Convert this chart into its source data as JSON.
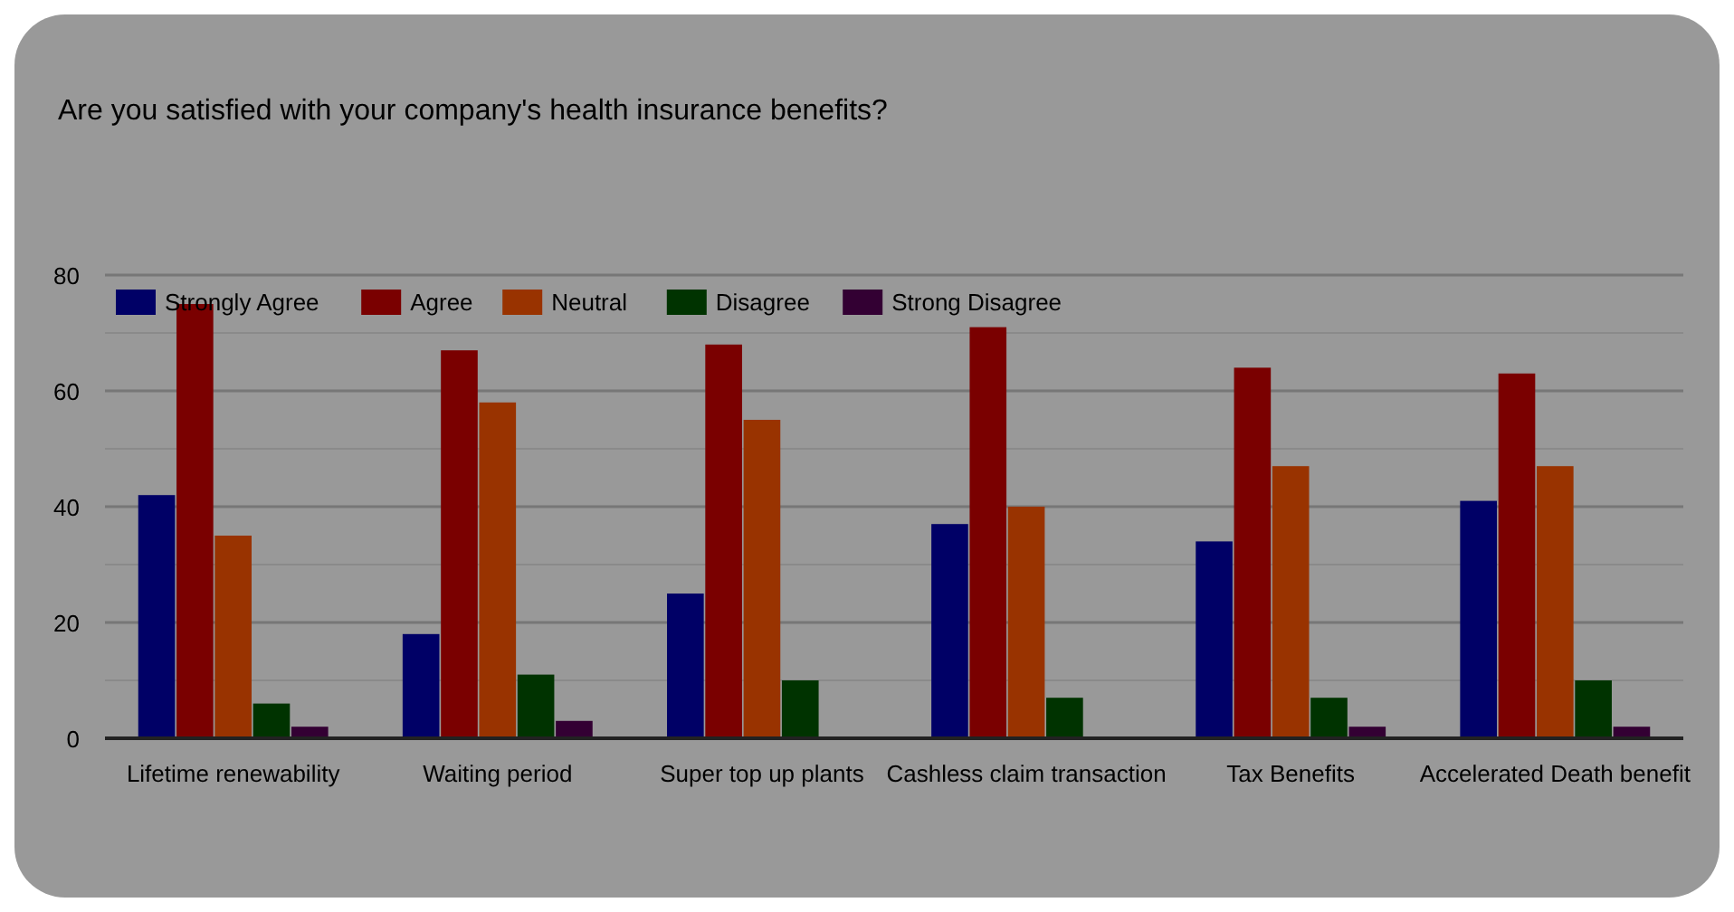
{
  "chart_data": {
    "type": "bar",
    "title": "Are you satisfied with your company's health insurance benefits?",
    "categories": [
      "Lifetime renewability",
      "Waiting period",
      "Super top up plants",
      "Cashless claim transaction",
      "Tax Benefits",
      "Accelerated Death benefit"
    ],
    "series": [
      {
        "name": "Strongly Agree",
        "color": "#000066",
        "values": [
          42,
          18,
          25,
          37,
          34,
          41
        ]
      },
      {
        "name": "Agree",
        "color": "#7a0000",
        "values": [
          75,
          67,
          68,
          71,
          64,
          63
        ]
      },
      {
        "name": "Neutral",
        "color": "#993300",
        "values": [
          35,
          58,
          55,
          40,
          47,
          47
        ]
      },
      {
        "name": "Disagree",
        "color": "#003300",
        "values": [
          6,
          11,
          10,
          7,
          7,
          10
        ]
      },
      {
        "name": "Strong Disagree",
        "color": "#330033",
        "values": [
          2,
          3,
          0,
          0,
          2,
          2
        ]
      }
    ],
    "ylim": [
      0,
      80
    ],
    "yticks": [
      0,
      {
        "value": 10,
        "label": null
      },
      20,
      {
        "value": 30,
        "label": null
      },
      40,
      {
        "value": 50,
        "label": null
      },
      60,
      {
        "value": 70,
        "label": null
      },
      80
    ],
    "grid": true,
    "legend": "top left"
  }
}
